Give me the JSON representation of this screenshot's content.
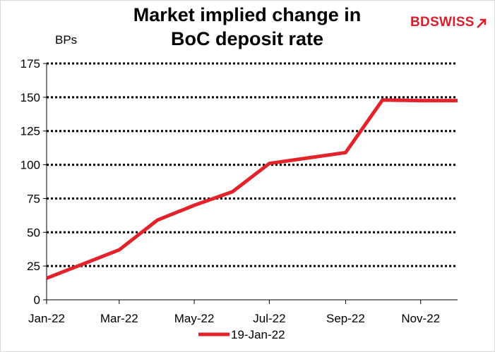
{
  "header": {
    "title_line1": "Market implied change in",
    "title_line2": "BoC deposit rate"
  },
  "logo": {
    "text_bd": "BD",
    "text_swiss": "SWISS",
    "icon": "arrow-icon",
    "color": "#d81f2a"
  },
  "chart_data": {
    "type": "line",
    "ylabel": "BPs",
    "ylim": [
      0,
      175
    ],
    "yticks": [
      0,
      25,
      50,
      75,
      100,
      125,
      150,
      175
    ],
    "xlim": [
      "2022-01-01",
      "2022-12-01"
    ],
    "xticks": [
      "Jan-22",
      "Mar-22",
      "May-22",
      "Jul-22",
      "Sep-22",
      "Nov-22"
    ],
    "grid": "horizontal-dotted",
    "legend_position": "bottom",
    "series": [
      {
        "name": "19-Jan-22",
        "color": "#e3232b",
        "points": [
          {
            "x": "2022-01-01",
            "y": 16
          },
          {
            "x": "2022-02-01",
            "y": 27
          },
          {
            "x": "2022-03-01",
            "y": 37
          },
          {
            "x": "2022-04-01",
            "y": 59
          },
          {
            "x": "2022-05-01",
            "y": 70
          },
          {
            "x": "2022-06-01",
            "y": 80
          },
          {
            "x": "2022-07-01",
            "y": 101
          },
          {
            "x": "2022-08-01",
            "y": 105
          },
          {
            "x": "2022-09-01",
            "y": 109
          },
          {
            "x": "2022-10-01",
            "y": 148
          },
          {
            "x": "2022-11-01",
            "y": 147.5
          },
          {
            "x": "2022-12-01",
            "y": 147.5
          }
        ]
      }
    ]
  }
}
